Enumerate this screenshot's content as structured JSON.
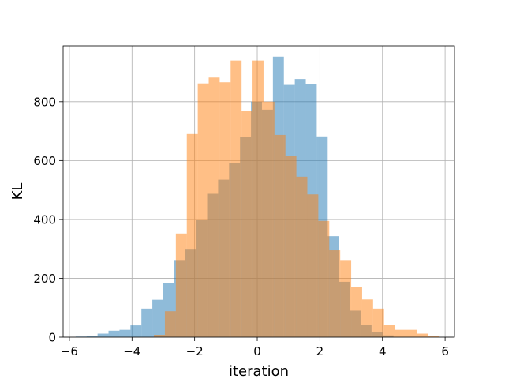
{
  "chart_data": {
    "type": "histogram",
    "xlabel": "iteration",
    "ylabel": "KL",
    "xlim": [
      -6.2,
      6.3
    ],
    "ylim": [
      0,
      990
    ],
    "xticks": [
      -6,
      -4,
      -2,
      0,
      2,
      4,
      6
    ],
    "yticks": [
      0,
      200,
      400,
      600,
      800
    ],
    "xtick_labels": [
      "−6",
      "−4",
      "−2",
      "0",
      "2",
      "4",
      "6"
    ],
    "ytick_labels": [
      "0",
      "200",
      "400",
      "600",
      "800"
    ],
    "grid": true,
    "series": [
      {
        "color": "#1f77b4",
        "opacity": 0.5,
        "bins": [
          {
            "x0": -5.8,
            "x1": -5.45,
            "v": 2
          },
          {
            "x0": -5.45,
            "x1": -5.1,
            "v": 5
          },
          {
            "x0": -5.1,
            "x1": -4.75,
            "v": 12
          },
          {
            "x0": -4.75,
            "x1": -4.4,
            "v": 22
          },
          {
            "x0": -4.4,
            "x1": -4.05,
            "v": 25
          },
          {
            "x0": -4.05,
            "x1": -3.7,
            "v": 40
          },
          {
            "x0": -3.7,
            "x1": -3.35,
            "v": 97
          },
          {
            "x0": -3.35,
            "x1": -3.0,
            "v": 127
          },
          {
            "x0": -3.0,
            "x1": -2.65,
            "v": 185
          },
          {
            "x0": -2.65,
            "x1": -2.3,
            "v": 262
          },
          {
            "x0": -2.3,
            "x1": -1.95,
            "v": 300
          },
          {
            "x0": -1.95,
            "x1": -1.6,
            "v": 398
          },
          {
            "x0": -1.6,
            "x1": -1.25,
            "v": 487
          },
          {
            "x0": -1.25,
            "x1": -0.9,
            "v": 535
          },
          {
            "x0": -0.9,
            "x1": -0.55,
            "v": 591
          },
          {
            "x0": -0.55,
            "x1": -0.2,
            "v": 681
          },
          {
            "x0": -0.2,
            "x1": 0.15,
            "v": 800
          },
          {
            "x0": 0.15,
            "x1": 0.5,
            "v": 773
          },
          {
            "x0": 0.5,
            "x1": 0.85,
            "v": 953
          },
          {
            "x0": 0.85,
            "x1": 1.2,
            "v": 857
          },
          {
            "x0": 1.2,
            "x1": 1.55,
            "v": 877
          },
          {
            "x0": 1.55,
            "x1": 1.9,
            "v": 861
          },
          {
            "x0": 1.9,
            "x1": 2.25,
            "v": 682
          },
          {
            "x0": 2.25,
            "x1": 2.6,
            "v": 343
          },
          {
            "x0": 2.6,
            "x1": 2.95,
            "v": 188
          },
          {
            "x0": 2.95,
            "x1": 3.3,
            "v": 90
          },
          {
            "x0": 3.3,
            "x1": 3.65,
            "v": 42
          },
          {
            "x0": 3.65,
            "x1": 4.0,
            "v": 18
          },
          {
            "x0": 4.0,
            "x1": 4.35,
            "v": 6
          }
        ]
      },
      {
        "color": "#ff7f0e",
        "opacity": 0.5,
        "bins": [
          {
            "x0": -3.3,
            "x1": -2.95,
            "v": 8
          },
          {
            "x0": -2.95,
            "x1": -2.6,
            "v": 88
          },
          {
            "x0": -2.6,
            "x1": -2.25,
            "v": 352
          },
          {
            "x0": -2.25,
            "x1": -1.9,
            "v": 690
          },
          {
            "x0": -1.9,
            "x1": -1.55,
            "v": 862
          },
          {
            "x0": -1.55,
            "x1": -1.2,
            "v": 882
          },
          {
            "x0": -1.2,
            "x1": -0.85,
            "v": 866
          },
          {
            "x0": -0.85,
            "x1": -0.5,
            "v": 940
          },
          {
            "x0": -0.5,
            "x1": -0.15,
            "v": 770
          },
          {
            "x0": -0.15,
            "x1": 0.2,
            "v": 940
          },
          {
            "x0": 0.2,
            "x1": 0.55,
            "v": 800
          },
          {
            "x0": 0.55,
            "x1": 0.9,
            "v": 687
          },
          {
            "x0": 0.9,
            "x1": 1.25,
            "v": 617
          },
          {
            "x0": 1.25,
            "x1": 1.6,
            "v": 545
          },
          {
            "x0": 1.6,
            "x1": 1.95,
            "v": 485
          },
          {
            "x0": 1.95,
            "x1": 2.3,
            "v": 395
          },
          {
            "x0": 2.3,
            "x1": 2.65,
            "v": 295
          },
          {
            "x0": 2.65,
            "x1": 3.0,
            "v": 262
          },
          {
            "x0": 3.0,
            "x1": 3.35,
            "v": 170
          },
          {
            "x0": 3.35,
            "x1": 3.7,
            "v": 128
          },
          {
            "x0": 3.7,
            "x1": 4.05,
            "v": 97
          },
          {
            "x0": 4.05,
            "x1": 4.4,
            "v": 42
          },
          {
            "x0": 4.4,
            "x1": 4.75,
            "v": 25
          },
          {
            "x0": 4.75,
            "x1": 5.1,
            "v": 25
          },
          {
            "x0": 5.1,
            "x1": 5.45,
            "v": 12
          },
          {
            "x0": 5.45,
            "x1": 5.8,
            "v": 3
          }
        ]
      }
    ]
  }
}
